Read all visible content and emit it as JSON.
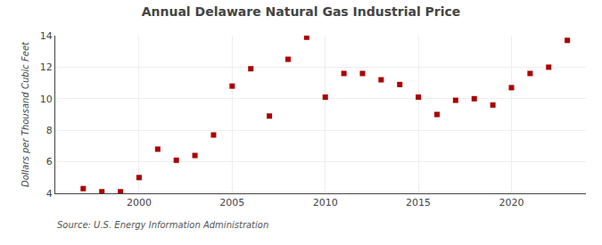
{
  "chart_data": {
    "type": "scatter",
    "title": "Annual Delaware Natural Gas Industrial Price",
    "y_label": "Dollars per Thousand Cubic Feet",
    "annotations": [
      "Source: U.S. Energy Information Administration"
    ],
    "x": [
      1997,
      1998,
      1999,
      2000,
      2001,
      2002,
      2003,
      2004,
      2005,
      2006,
      2007,
      2008,
      2009,
      2010,
      2011,
      2012,
      2013,
      2014,
      2015,
      2016,
      2017,
      2018,
      2019,
      2020,
      2021,
      2022,
      2023
    ],
    "values": [
      4.3,
      4.1,
      4.1,
      5.0,
      6.8,
      6.1,
      6.4,
      7.7,
      10.8,
      11.9,
      8.9,
      12.5,
      13.9,
      10.1,
      11.6,
      11.6,
      11.2,
      10.9,
      10.1,
      9.0,
      9.9,
      10.0,
      9.6,
      10.7,
      11.6,
      12.0,
      13.7
    ],
    "color": "#aa0000",
    "marker": "square",
    "xlim": [
      1995.5,
      2024
    ],
    "xticks": [
      2000,
      2005,
      2010,
      2015,
      2020
    ],
    "ylim": [
      4,
      14
    ],
    "yticks": [
      4,
      6,
      8,
      10,
      12,
      14
    ],
    "grid": true
  }
}
